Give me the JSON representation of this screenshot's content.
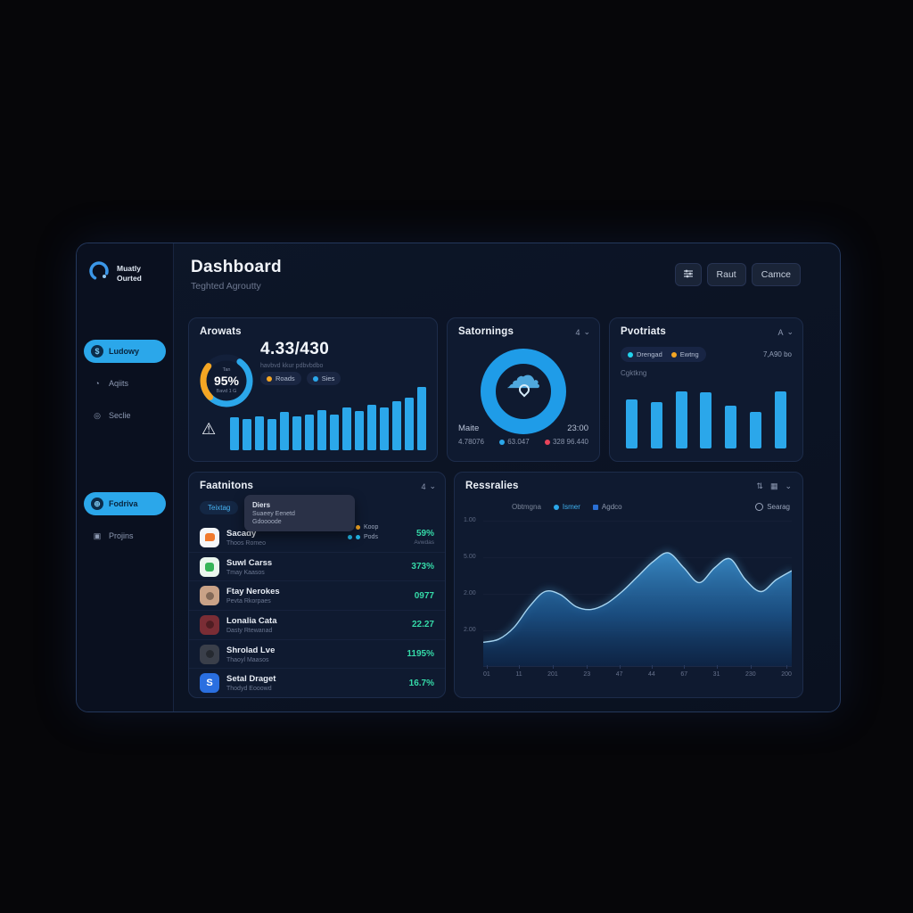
{
  "colors": {
    "accent": "#2ba7ea",
    "orange": "#f5a623",
    "red": "#e8445a",
    "green": "#35d9a8",
    "panel": "#0d1628",
    "card": "#0f1a30"
  },
  "sidebar": {
    "logo_line1": "Muatly",
    "logo_line2": "Ourted",
    "group1": [
      {
        "label": "Ludowy",
        "icon": "dollar-circle-icon",
        "glyph": "$",
        "active": true
      },
      {
        "label": "Aqiits",
        "icon": "bell-icon",
        "glyph": "◔",
        "active": false
      },
      {
        "label": "Seclie",
        "icon": "target-icon",
        "glyph": "◎",
        "active": false
      }
    ],
    "group2": [
      {
        "label": "Fodriva",
        "icon": "orbit-icon",
        "glyph": "⊕",
        "active": true
      },
      {
        "label": "Projins",
        "icon": "grid-icon",
        "glyph": "▣",
        "active": false
      }
    ]
  },
  "header": {
    "title": "Dashboard",
    "subtitle": "Teghted Agroutty",
    "button1": "Raut",
    "button2": "Camce"
  },
  "cards": {
    "arowats": {
      "title": "Arowats",
      "gauge": {
        "label_top": "Tan",
        "value": "95%",
        "label_bottom": "Bavd 1 G"
      },
      "big_value": "4.33/430",
      "big_caption": "havbvd kkur pdbvbdbo",
      "legend": [
        {
          "label": "Roads",
          "color": "#f5a623"
        },
        {
          "label": "Sies",
          "color": "#2ba7ea"
        }
      ]
    },
    "satornings": {
      "title": "Satornings",
      "dropdown": "4",
      "footer_left": "Maite",
      "footer_right": "23:00",
      "stat_plain": "4.78076",
      "stat_blue": "63.047",
      "stat_red": "328 96.440"
    },
    "pvotriats": {
      "title": "Pvotriats",
      "dropdown": "A",
      "legend": [
        {
          "label": "Drengad",
          "color": "#22d3ee"
        },
        {
          "label": "Ewtng",
          "color": "#f5a623"
        }
      ],
      "right_value": "7,A90 bo",
      "sub_label": "Cgktkng"
    },
    "faatnitons": {
      "title": "Faatnitons",
      "dropdown": "4",
      "tag": "Teixtag",
      "tooltip": {
        "title": "Diers",
        "line1": "Suaeey Eenetd",
        "line2": "Gdoooode"
      },
      "legend": [
        {
          "label": "Koop",
          "color": "#f5a623"
        },
        {
          "label": "Pods",
          "color": "#22b8e8"
        }
      ],
      "items": [
        {
          "name": "Sacady",
          "sub": "Thoos Romeo",
          "value": "59%",
          "value_sub": "Avwdas",
          "icon": "chat"
        },
        {
          "name": "Suwl Carss",
          "sub": "Tmay Kaasos",
          "value": "373%",
          "icon": "apps"
        },
        {
          "name": "Ftay Nerokes",
          "sub": "Pevta Rkorpaes",
          "value": "0977",
          "icon": "avatar-tan"
        },
        {
          "name": "Lonalia Cata",
          "sub": "Dasty Rtewanad",
          "value": "22.27",
          "icon": "avatar-red"
        },
        {
          "name": "Shrolad Lve",
          "sub": "Thaoyl Maasos",
          "value": "1195%",
          "icon": "avatar-dark"
        },
        {
          "name": "Setal Draget",
          "sub": "Thodyd Eooowd",
          "value": "16.7%",
          "icon": "letter-s",
          "glyph": "S"
        }
      ]
    },
    "ressralies": {
      "title": "Ressralies",
      "legend_plain": "Obtmgna",
      "legend_blue": "Ismer",
      "legend_square": "Agdco",
      "legend_right": "Searag"
    }
  },
  "chart_data": [
    {
      "id": "arowats-bars",
      "type": "bar",
      "title": "Arowats",
      "values": [
        52,
        48,
        53,
        48,
        60,
        53,
        55,
        63,
        55,
        66,
        61,
        71,
        66,
        76,
        82,
        98
      ],
      "ylim": [
        0,
        100
      ],
      "color": "#2ba7ea"
    },
    {
      "id": "pvotriats-bars",
      "type": "bar",
      "title": "Pvotriats",
      "values": [
        83,
        79,
        97,
        95,
        72,
        62,
        97
      ],
      "ylim": [
        0,
        100
      ],
      "color": "#2ba7ea"
    },
    {
      "id": "ressralies-area",
      "type": "area",
      "title": "Ressralies",
      "legend": [
        "Obtmgna",
        "Ismer",
        "Agdco",
        "Searag"
      ],
      "y_ticks": [
        "1.00",
        "5.00",
        "2.00",
        "2.00"
      ],
      "x_ticks": [
        "01",
        "11",
        "201",
        "23",
        "47",
        "44",
        "67",
        "31",
        "230",
        "200"
      ],
      "points": [
        16,
        18,
        26,
        40,
        50,
        48,
        40,
        38,
        42,
        50,
        60,
        70,
        76,
        66,
        56,
        66,
        72,
        58,
        50,
        58,
        64
      ],
      "ylim": [
        0,
        100
      ],
      "grid": true,
      "fill": "#2f7fc0",
      "line": "#a6d4f0"
    }
  ]
}
